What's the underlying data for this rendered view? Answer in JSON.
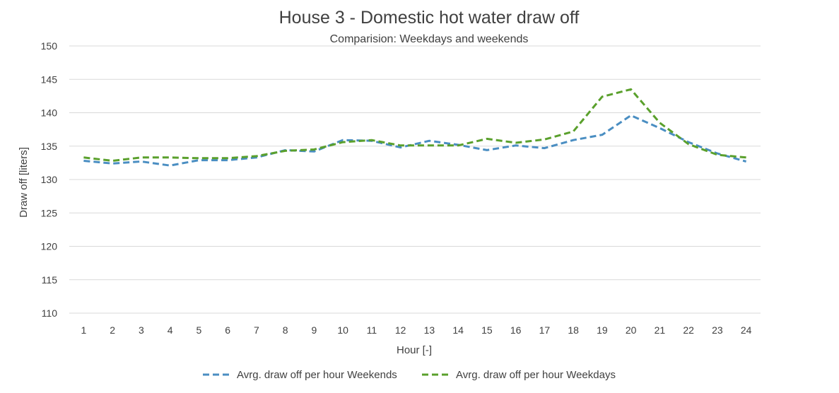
{
  "chart_data": {
    "type": "line",
    "title": "House 3 - Domestic hot water draw off",
    "subtitle": "Comparision: Weekdays and weekends",
    "xlabel": "Hour [-]",
    "ylabel": "Draw off [liters]",
    "ylim": [
      110,
      150
    ],
    "ytick_step": 5,
    "yticks": [
      "110",
      "115",
      "120",
      "125",
      "130",
      "135",
      "140",
      "145",
      "150"
    ],
    "categories": [
      "1",
      "2",
      "3",
      "4",
      "5",
      "6",
      "7",
      "8",
      "9",
      "10",
      "11",
      "12",
      "13",
      "14",
      "15",
      "16",
      "17",
      "18",
      "19",
      "20",
      "21",
      "22",
      "23",
      "24"
    ],
    "grid": true,
    "legend_position": "bottom",
    "series": [
      {
        "name": "Avrg. draw off per hour Weekends",
        "color": "#4a8ec2",
        "dash": "dashed",
        "values": [
          132.8,
          132.4,
          132.7,
          132.1,
          132.9,
          132.9,
          133.3,
          134.4,
          134.2,
          135.9,
          135.8,
          134.8,
          135.8,
          135.2,
          134.4,
          135.1,
          134.7,
          135.9,
          136.7,
          139.6,
          137.7,
          135.6,
          133.9,
          132.7
        ]
      },
      {
        "name": "Avrg. draw off per hour Weekdays",
        "color": "#5aa02c",
        "dash": "dashed",
        "values": [
          133.3,
          132.8,
          133.3,
          133.3,
          133.2,
          133.2,
          133.5,
          134.3,
          134.5,
          135.6,
          135.9,
          135.1,
          135.1,
          135.1,
          136.1,
          135.5,
          136.0,
          137.2,
          142.4,
          143.5,
          138.5,
          135.3,
          133.7,
          133.3
        ]
      }
    ]
  }
}
